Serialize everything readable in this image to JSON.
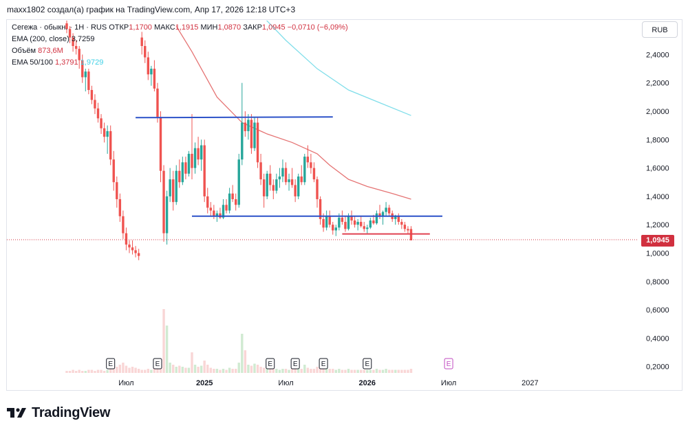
{
  "header": {
    "author_line": "maxx1802 создал(а) график на TradingView.com, Апр 17, 2026 12:18 UTC+3"
  },
  "legend": {
    "line1": {
      "symbol": "Сегежа · обыкн. · 1Н · RUS",
      "open_label": "ОТКР",
      "open": "1,1700",
      "high_label": "МАКС",
      "high": "1,1915",
      "low_label": "МИН",
      "low": "1,0870",
      "close_label": "ЗАКР",
      "close": "1,0945",
      "change": "−0,0710 (−6,09%)"
    },
    "line2": {
      "label": "EMA (200, close)",
      "value": "3,7259"
    },
    "line3": {
      "label": "Объём",
      "value": "873,6M"
    },
    "line4": {
      "label": "EMA 50/100",
      "value_50": "1,3791",
      "value_100": "1,9729"
    }
  },
  "currency_button": "RUB",
  "price_badge": "1,0945",
  "brand": {
    "name": "TradingView"
  },
  "colors": {
    "up": "#26a69a",
    "down": "#ef5350",
    "ema50": "#e57373",
    "ema100": "#80deea",
    "blue_line": "#2b51c8",
    "red_line": "#e0404f",
    "badge": "#d1303f"
  },
  "chart_data": {
    "type": "candlestick",
    "title": "Сегежа · обыкн. · 1Н · RUS",
    "ylabel": "RUB",
    "ylim": [
      0.12,
      2.6
    ],
    "y_ticks": [
      "2,4000",
      "2,2000",
      "2,0000",
      "1,8000",
      "1,6000",
      "1,4000",
      "1,2000",
      "1,0000",
      "0,8000",
      "0,6000",
      "0,4000",
      "0,2000"
    ],
    "y_tick_values": [
      2.4,
      2.2,
      2.0,
      1.8,
      1.6,
      1.4,
      1.2,
      1.0,
      0.8,
      0.6,
      0.4,
      0.2
    ],
    "x_ticks": [
      {
        "label": "Июл",
        "week": 19,
        "bold": false
      },
      {
        "label": "2025",
        "week": 44,
        "bold": true
      },
      {
        "label": "Июл",
        "week": 70,
        "bold": false
      },
      {
        "label": "2026",
        "week": 96,
        "bold": true
      },
      {
        "label": "Июл",
        "week": 122,
        "bold": false
      },
      {
        "label": "2027",
        "week": 148,
        "bold": false
      }
    ],
    "candles": [
      [
        2.62,
        2.66,
        2.55,
        2.58
      ],
      [
        2.58,
        2.6,
        2.48,
        2.52
      ],
      [
        2.52,
        2.55,
        2.42,
        2.46
      ],
      [
        2.46,
        2.5,
        2.4,
        2.44
      ],
      [
        2.44,
        2.46,
        2.3,
        2.36
      ],
      [
        2.36,
        2.4,
        2.2,
        2.24
      ],
      [
        2.24,
        2.3,
        2.14,
        2.28
      ],
      [
        2.28,
        2.3,
        2.12,
        2.15
      ],
      [
        2.15,
        2.18,
        2.05,
        2.08
      ],
      [
        2.08,
        2.12,
        1.98,
        2.02
      ],
      [
        2.02,
        2.06,
        1.92,
        1.95
      ],
      [
        1.95,
        1.98,
        1.84,
        1.88
      ],
      [
        1.88,
        1.92,
        1.78,
        1.82
      ],
      [
        1.82,
        1.9,
        1.7,
        1.86
      ],
      [
        1.86,
        1.9,
        1.62,
        1.66
      ],
      [
        1.66,
        1.72,
        1.44,
        1.5
      ],
      [
        1.5,
        1.54,
        1.32,
        1.38
      ],
      [
        1.38,
        1.42,
        1.22,
        1.26
      ],
      [
        1.26,
        1.3,
        1.1,
        1.14
      ],
      [
        1.14,
        1.18,
        1.02,
        1.06
      ],
      [
        1.06,
        1.09,
        1.0,
        1.04
      ],
      [
        1.04,
        1.09,
        0.99,
        1.02
      ],
      [
        1.02,
        1.05,
        0.97,
        1.0
      ],
      [
        1.0,
        1.03,
        0.95,
        0.98
      ],
      [
        2.52,
        2.56,
        2.4,
        2.46
      ],
      [
        2.46,
        2.5,
        2.34,
        2.38
      ],
      [
        2.38,
        2.42,
        2.22,
        2.26
      ],
      [
        2.26,
        2.32,
        2.18,
        2.3
      ],
      [
        2.3,
        2.36,
        2.14,
        2.16
      ],
      [
        2.16,
        2.2,
        1.92,
        1.96
      ],
      [
        1.96,
        2.0,
        1.5,
        1.58
      ],
      [
        1.58,
        1.62,
        1.08,
        1.14
      ],
      [
        1.14,
        1.44,
        1.06,
        1.4
      ],
      [
        1.4,
        1.6,
        1.36,
        1.52
      ],
      [
        1.52,
        1.58,
        1.3,
        1.36
      ],
      [
        1.36,
        1.62,
        1.34,
        1.58
      ],
      [
        1.58,
        1.66,
        1.46,
        1.5
      ],
      [
        1.5,
        1.68,
        1.48,
        1.64
      ],
      [
        1.64,
        1.68,
        1.52,
        1.56
      ],
      [
        1.56,
        1.72,
        1.54,
        1.7
      ],
      [
        1.7,
        1.98,
        1.52,
        1.6
      ],
      [
        1.6,
        1.78,
        1.56,
        1.74
      ],
      [
        1.74,
        1.82,
        1.62,
        1.66
      ],
      [
        1.66,
        1.8,
        1.58,
        1.76
      ],
      [
        1.76,
        1.8,
        1.36,
        1.4
      ],
      [
        1.4,
        1.46,
        1.28,
        1.32
      ],
      [
        1.32,
        1.36,
        1.26,
        1.3
      ],
      [
        1.3,
        1.34,
        1.24,
        1.26
      ],
      [
        1.26,
        1.3,
        1.22,
        1.28
      ],
      [
        1.28,
        1.32,
        1.24,
        1.25
      ],
      [
        1.25,
        1.38,
        1.24,
        1.34
      ],
      [
        1.34,
        1.38,
        1.28,
        1.3
      ],
      [
        1.3,
        1.46,
        1.28,
        1.42
      ],
      [
        1.42,
        1.48,
        1.36,
        1.38
      ],
      [
        1.38,
        1.42,
        1.3,
        1.34
      ],
      [
        1.34,
        1.7,
        1.32,
        1.66
      ],
      [
        1.66,
        2.2,
        1.62,
        1.92
      ],
      [
        1.92,
        2.0,
        1.82,
        1.86
      ],
      [
        1.86,
        1.98,
        1.8,
        1.94
      ],
      [
        1.94,
        1.98,
        1.7,
        1.74
      ],
      [
        1.74,
        1.96,
        1.72,
        1.92
      ],
      [
        1.92,
        1.96,
        1.6,
        1.64
      ],
      [
        1.64,
        1.7,
        1.48,
        1.52
      ],
      [
        1.52,
        1.56,
        1.32,
        1.4
      ],
      [
        1.4,
        1.58,
        1.38,
        1.56
      ],
      [
        1.56,
        1.62,
        1.44,
        1.48
      ],
      [
        1.48,
        1.52,
        1.38,
        1.44
      ],
      [
        1.44,
        1.56,
        1.42,
        1.52
      ],
      [
        1.52,
        1.6,
        1.46,
        1.54
      ],
      [
        1.54,
        1.66,
        1.5,
        1.6
      ],
      [
        1.6,
        1.64,
        1.48,
        1.5
      ],
      [
        1.5,
        1.56,
        1.44,
        1.52
      ],
      [
        1.52,
        1.6,
        1.46,
        1.48
      ],
      [
        1.48,
        1.52,
        1.36,
        1.4
      ],
      [
        1.4,
        1.56,
        1.38,
        1.54
      ],
      [
        1.54,
        1.62,
        1.48,
        1.5
      ],
      [
        1.5,
        1.7,
        1.48,
        1.68
      ],
      [
        1.68,
        1.76,
        1.6,
        1.64
      ],
      [
        1.64,
        1.7,
        1.56,
        1.6
      ],
      [
        1.6,
        1.64,
        1.5,
        1.52
      ],
      [
        1.52,
        1.54,
        1.32,
        1.38
      ],
      [
        1.38,
        1.4,
        1.2,
        1.24
      ],
      [
        1.24,
        1.28,
        1.15,
        1.18
      ],
      [
        1.18,
        1.3,
        1.16,
        1.26
      ],
      [
        1.26,
        1.3,
        1.18,
        1.2
      ],
      [
        1.2,
        1.22,
        1.13,
        1.16
      ],
      [
        1.16,
        1.2,
        1.12,
        1.18
      ],
      [
        1.18,
        1.28,
        1.16,
        1.25
      ],
      [
        1.25,
        1.3,
        1.2,
        1.22
      ],
      [
        1.22,
        1.26,
        1.15,
        1.17
      ],
      [
        1.17,
        1.28,
        1.16,
        1.26
      ],
      [
        1.26,
        1.3,
        1.2,
        1.23
      ],
      [
        1.23,
        1.26,
        1.18,
        1.2
      ],
      [
        1.2,
        1.24,
        1.16,
        1.22
      ],
      [
        1.22,
        1.26,
        1.18,
        1.19
      ],
      [
        1.19,
        1.22,
        1.15,
        1.17
      ],
      [
        1.17,
        1.2,
        1.14,
        1.18
      ],
      [
        1.18,
        1.25,
        1.17,
        1.23
      ],
      [
        1.23,
        1.27,
        1.2,
        1.21
      ],
      [
        1.21,
        1.3,
        1.2,
        1.28
      ],
      [
        1.28,
        1.34,
        1.24,
        1.26
      ],
      [
        1.26,
        1.3,
        1.2,
        1.29
      ],
      [
        1.29,
        1.36,
        1.26,
        1.32
      ],
      [
        1.32,
        1.34,
        1.26,
        1.28
      ],
      [
        1.28,
        1.3,
        1.22,
        1.24
      ],
      [
        1.24,
        1.27,
        1.2,
        1.26
      ],
      [
        1.26,
        1.28,
        1.2,
        1.22
      ],
      [
        1.22,
        1.24,
        1.17,
        1.2
      ],
      [
        1.2,
        1.22,
        1.15,
        1.17
      ],
      [
        1.17,
        1.19,
        1.14,
        1.16
      ],
      [
        1.17,
        1.19,
        1.09,
        1.09
      ]
    ],
    "volumes": [
      0.02,
      0.02,
      0.03,
      0.02,
      0.03,
      0.02,
      0.02,
      0.03,
      0.03,
      0.02,
      0.03,
      0.03,
      0.02,
      0.03,
      0.04,
      0.05,
      0.06,
      0.08,
      0.1,
      0.07,
      0.05,
      0.06,
      0.05,
      0.04,
      0.03,
      0.03,
      0.04,
      0.03,
      0.05,
      0.06,
      0.1,
      0.62,
      0.46,
      0.1,
      0.08,
      0.06,
      0.07,
      0.06,
      0.05,
      0.05,
      0.2,
      0.08,
      0.06,
      0.07,
      0.12,
      0.08,
      0.05,
      0.04,
      0.04,
      0.03,
      0.04,
      0.03,
      0.05,
      0.04,
      0.04,
      0.1,
      0.38,
      0.22,
      0.08,
      0.07,
      0.09,
      0.08,
      0.06,
      0.05,
      0.04,
      0.05,
      0.04,
      0.04,
      0.03,
      0.04,
      0.04,
      0.03,
      0.04,
      0.05,
      0.05,
      0.04,
      0.08,
      0.05,
      0.04,
      0.04,
      0.06,
      0.08,
      0.05,
      0.05,
      0.04,
      0.04,
      0.03,
      0.04,
      0.03,
      0.03,
      0.04,
      0.03,
      0.03,
      0.03,
      0.03,
      0.03,
      0.03,
      0.03,
      0.03,
      0.04,
      0.03,
      0.03,
      0.04,
      0.03,
      0.03,
      0.03,
      0.03,
      0.03,
      0.03,
      0.03,
      0.04
    ],
    "ema50": [
      [
        35,
        2.6
      ],
      [
        40,
        2.42
      ],
      [
        48,
        2.1
      ],
      [
        56,
        1.92
      ],
      [
        64,
        1.84
      ],
      [
        72,
        1.78
      ],
      [
        80,
        1.7
      ],
      [
        84,
        1.62
      ],
      [
        90,
        1.52
      ],
      [
        96,
        1.47
      ],
      [
        104,
        1.42
      ],
      [
        110,
        1.38
      ]
    ],
    "ema100": [
      [
        63,
        2.66
      ],
      [
        70,
        2.5
      ],
      [
        80,
        2.3
      ],
      [
        90,
        2.15
      ],
      [
        100,
        2.06
      ],
      [
        110,
        1.97
      ]
    ],
    "annotations": {
      "upper_line": {
        "w1": 22,
        "w2": 85,
        "price": 1.955
      },
      "middle_line": {
        "w1": 40,
        "w2": 120,
        "price": 1.26
      },
      "lower_red_line": {
        "w1": 88,
        "w2": 116,
        "price": 1.135
      },
      "current_price_line": 1.0945,
      "earnings_markers": [
        {
          "label": "E",
          "week": 14,
          "future": false
        },
        {
          "label": "E",
          "week": 29,
          "future": false
        },
        {
          "label": "E",
          "week": 65,
          "future": false
        },
        {
          "label": "E",
          "week": 73,
          "future": false
        },
        {
          "label": "E",
          "week": 82,
          "future": false
        },
        {
          "label": "E",
          "week": 96,
          "future": false
        },
        {
          "label": "E",
          "week": 122,
          "future": true
        }
      ]
    }
  }
}
